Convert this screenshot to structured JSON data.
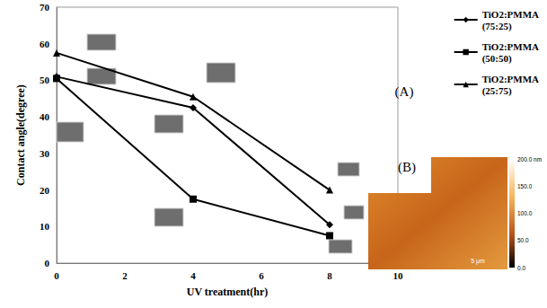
{
  "chart_data": {
    "type": "line",
    "xlabel": "UV treatment(hr)",
    "ylabel": "Contact angle(degree)",
    "x": [
      0,
      4,
      8
    ],
    "series": [
      {
        "name": "TiO2:PMMA (75:25)",
        "color": "#000000",
        "marker": "diamond",
        "values": [
          51,
          42.5,
          10.5
        ]
      },
      {
        "name": "TiO2:PMMA (50:50)",
        "color": "#000000",
        "marker": "square",
        "values": [
          50.5,
          17.5,
          7.5
        ]
      },
      {
        "name": "TiO2:PMMA (25:75)",
        "color": "#000000",
        "marker": "triangle",
        "values": [
          57.5,
          45.5,
          20
        ]
      }
    ],
    "xlim": [
      0,
      10
    ],
    "xticks": [
      0,
      2,
      4,
      6,
      8,
      10
    ],
    "ylim": [
      0,
      70
    ],
    "yticks": [
      0,
      10,
      20,
      30,
      40,
      50,
      60,
      70
    ],
    "grid": false,
    "legend": "right",
    "annotations": [
      {
        "text": "(A)"
      },
      {
        "text": "(B)"
      }
    ],
    "afm_colorbar": {
      "range": [
        0,
        200
      ],
      "ticks": [
        {
          "value": 200,
          "label": "200.0 nm"
        },
        {
          "value": 150,
          "label": "150.0"
        },
        {
          "value": 100,
          "label": "100.0"
        },
        {
          "value": 50,
          "label": "50.0"
        },
        {
          "value": 0,
          "label": "0.0"
        }
      ]
    },
    "afm_scale_bar": "5 μm"
  }
}
